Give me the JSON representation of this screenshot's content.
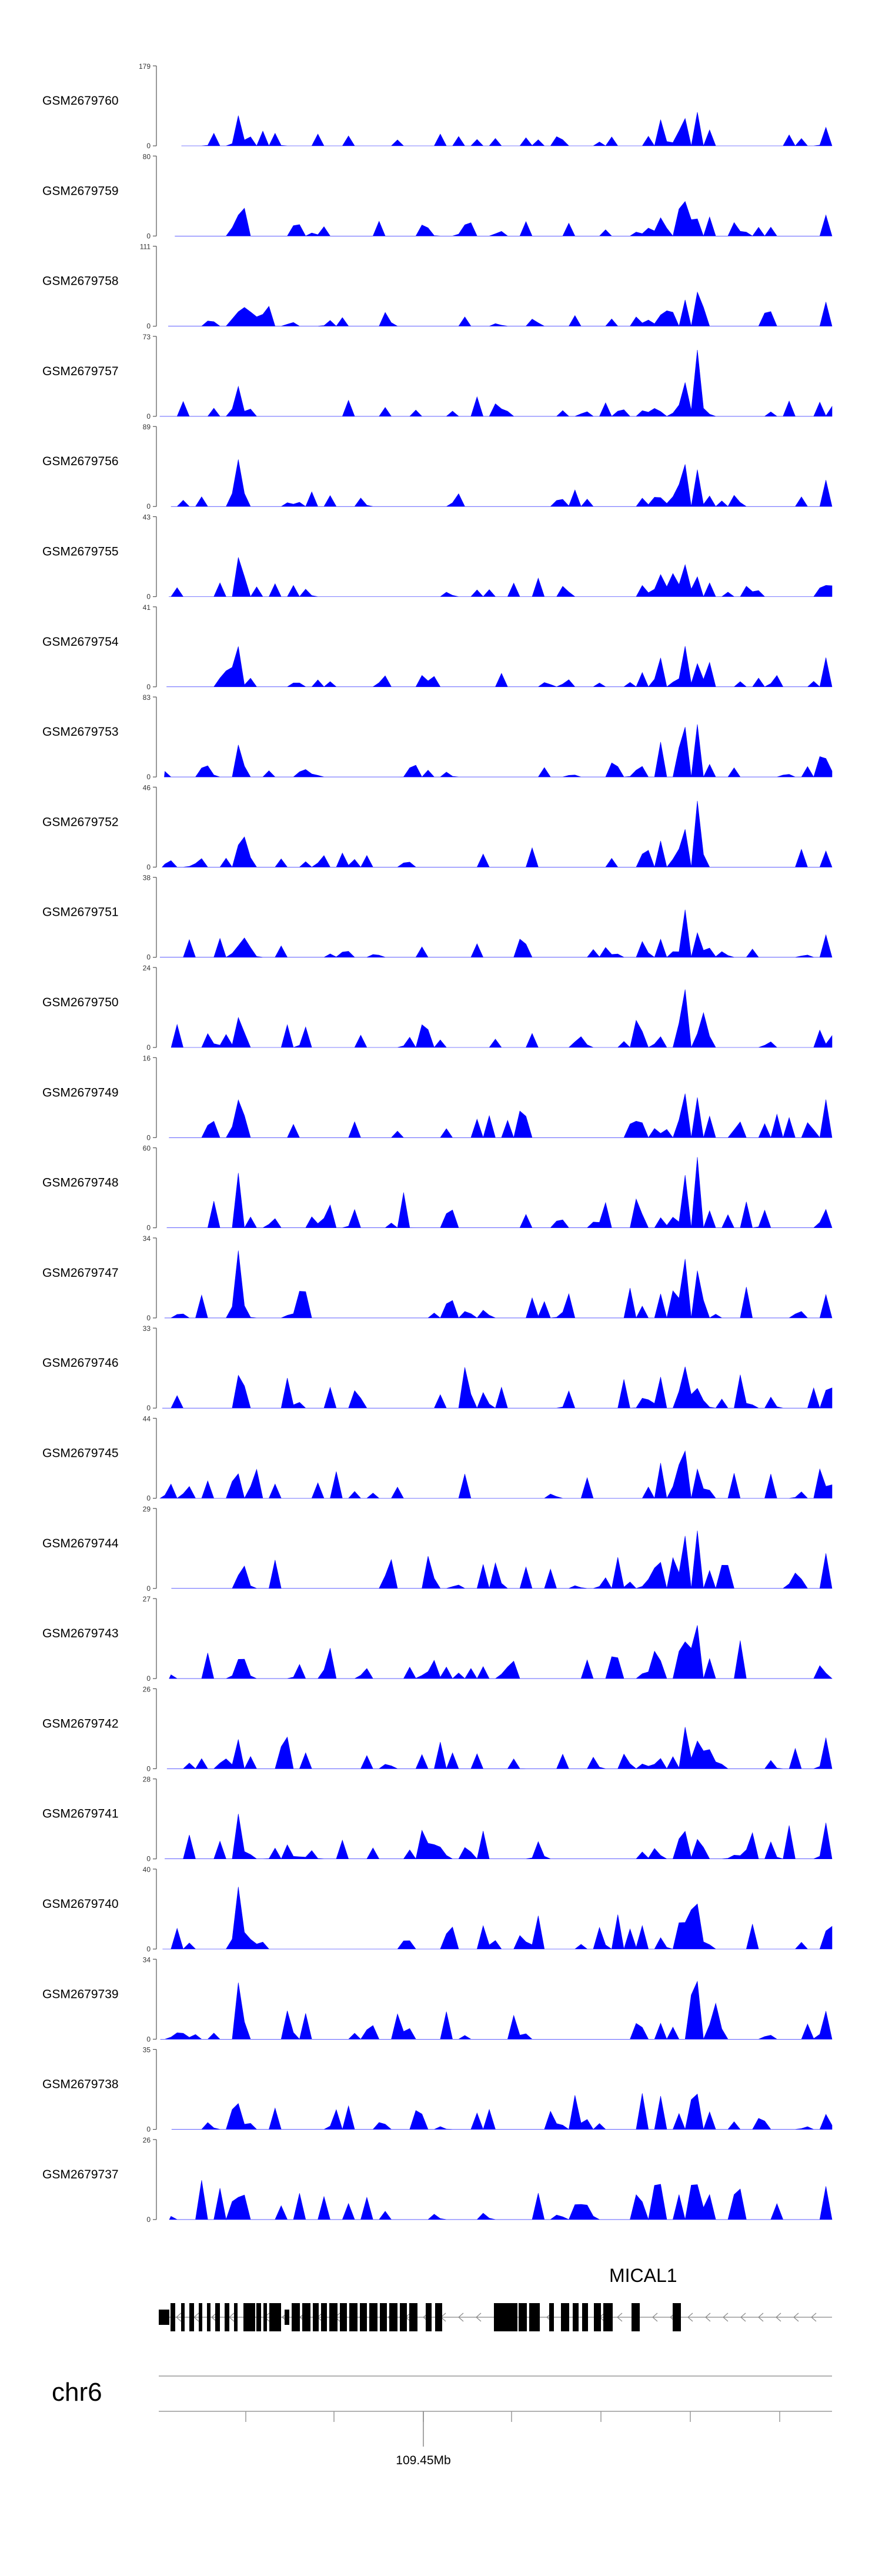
{
  "chart_data": {
    "type": "area",
    "title": "",
    "chromosome": "chr6",
    "genome_axis": {
      "tick_label": "109.45Mb"
    },
    "gene": {
      "name": "MICAL1",
      "strand": "-"
    },
    "color": "#0000ff",
    "tracks": [
      {
        "name": "GSM2679760",
        "ymax": 179,
        "ymin": 0
      },
      {
        "name": "GSM2679759",
        "ymax": 80,
        "ymin": 0
      },
      {
        "name": "GSM2679758",
        "ymax": 111,
        "ymin": 0
      },
      {
        "name": "GSM2679757",
        "ymax": 73,
        "ymin": 0
      },
      {
        "name": "GSM2679756",
        "ymax": 89,
        "ymin": 0
      },
      {
        "name": "GSM2679755",
        "ymax": 43,
        "ymin": 0
      },
      {
        "name": "GSM2679754",
        "ymax": 41,
        "ymin": 0
      },
      {
        "name": "GSM2679753",
        "ymax": 83,
        "ymin": 0
      },
      {
        "name": "GSM2679752",
        "ymax": 46,
        "ymin": 0
      },
      {
        "name": "GSM2679751",
        "ymax": 38,
        "ymin": 0
      },
      {
        "name": "GSM2679750",
        "ymax": 24,
        "ymin": 0
      },
      {
        "name": "GSM2679749",
        "ymax": 16,
        "ymin": 0
      },
      {
        "name": "GSM2679748",
        "ymax": 60,
        "ymin": 0
      },
      {
        "name": "GSM2679747",
        "ymax": 34,
        "ymin": 0
      },
      {
        "name": "GSM2679746",
        "ymax": 33,
        "ymin": 0
      },
      {
        "name": "GSM2679745",
        "ymax": 44,
        "ymin": 0
      },
      {
        "name": "GSM2679744",
        "ymax": 29,
        "ymin": 0
      },
      {
        "name": "GSM2679743",
        "ymax": 27,
        "ymin": 0
      },
      {
        "name": "GSM2679742",
        "ymax": 26,
        "ymin": 0
      },
      {
        "name": "GSM2679741",
        "ymax": 28,
        "ymin": 0
      },
      {
        "name": "GSM2679740",
        "ymax": 40,
        "ymin": 0
      },
      {
        "name": "GSM2679739",
        "ymax": 34,
        "ymin": 0
      },
      {
        "name": "GSM2679738",
        "ymax": 35,
        "ymin": 0
      },
      {
        "name": "GSM2679737",
        "ymax": 26,
        "ymin": 0
      }
    ]
  }
}
